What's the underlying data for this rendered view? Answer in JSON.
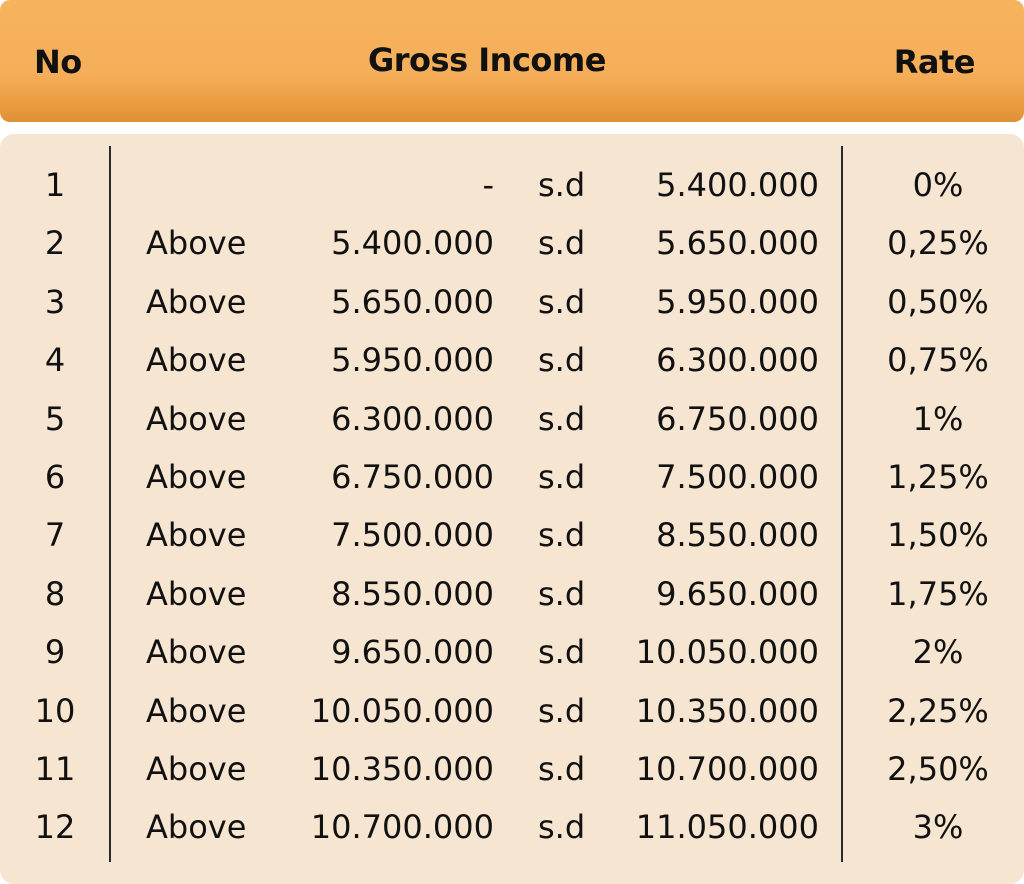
{
  "header": {
    "no_label": "No",
    "gross_income_label": "Gross Income",
    "rate_label": "Rate"
  },
  "rows": [
    {
      "no": "1",
      "above": "",
      "from": "-",
      "sd": "s.d",
      "to": "5.400.000",
      "rate": "0%"
    },
    {
      "no": "2",
      "above": "Above",
      "from": "5.400.000",
      "sd": "s.d",
      "to": "5.650.000",
      "rate": "0,25%"
    },
    {
      "no": "3",
      "above": "Above",
      "from": "5.650.000",
      "sd": "s.d",
      "to": "5.950.000",
      "rate": "0,50%"
    },
    {
      "no": "4",
      "above": "Above",
      "from": "5.950.000",
      "sd": "s.d",
      "to": "6.300.000",
      "rate": "0,75%"
    },
    {
      "no": "5",
      "above": "Above",
      "from": "6.300.000",
      "sd": "s.d",
      "to": "6.750.000",
      "rate": "1%"
    },
    {
      "no": "6",
      "above": "Above",
      "from": "6.750.000",
      "sd": "s.d",
      "to": "7.500.000",
      "rate": "1,25%"
    },
    {
      "no": "7",
      "above": "Above",
      "from": "7.500.000",
      "sd": "s.d",
      "to": "8.550.000",
      "rate": "1,50%"
    },
    {
      "no": "8",
      "above": "Above",
      "from": "8.550.000",
      "sd": "s.d",
      "to": "9.650.000",
      "rate": "1,75%"
    },
    {
      "no": "9",
      "above": "Above",
      "from": "9.650.000",
      "sd": "s.d",
      "to": "10.050.000",
      "rate": "2%"
    },
    {
      "no": "10",
      "above": "Above",
      "from": "10.050.000",
      "sd": "s.d",
      "to": "10.350.000",
      "rate": "2,25%"
    },
    {
      "no": "11",
      "above": "Above",
      "from": "10.350.000",
      "sd": "s.d",
      "to": "10.700.000",
      "rate": "2,50%"
    },
    {
      "no": "12",
      "above": "Above",
      "from": "10.700.000",
      "sd": "s.d",
      "to": "11.050.000",
      "rate": "3%"
    }
  ],
  "colors": {
    "header_orange": "#f5ae59",
    "body_beige": "#f6e5d1",
    "text": "#111111"
  }
}
